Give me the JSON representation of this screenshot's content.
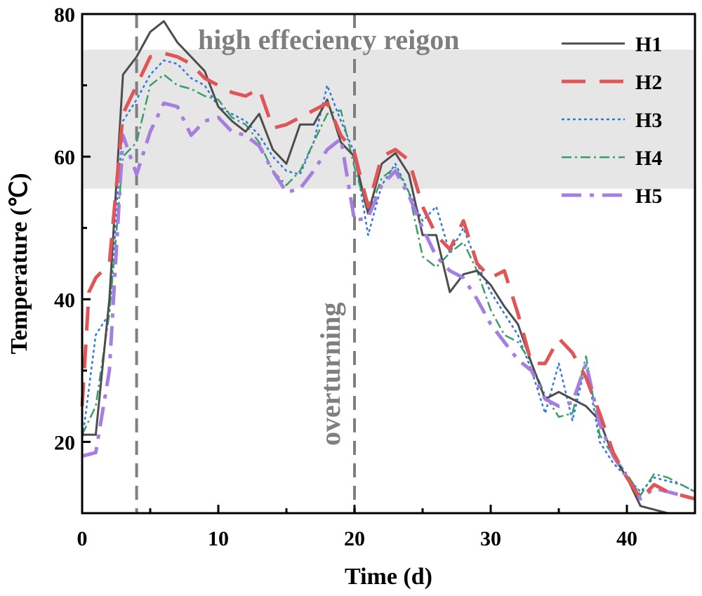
{
  "chart_data": {
    "type": "line",
    "xlabel": "Time (d)",
    "ylabel": "Temperature (℃)",
    "xlim": [
      0,
      45
    ],
    "ylim": [
      10,
      80
    ],
    "xticks": [
      0,
      10,
      20,
      30,
      40
    ],
    "yticks": [
      20,
      40,
      60,
      80
    ],
    "grid": false,
    "legend": "top-right",
    "region": {
      "label": "high effeciency reigon",
      "ymin": 55.5,
      "ymax": 75,
      "color": "#e6e6e6"
    },
    "vlines": [
      {
        "x": 4,
        "label": ""
      },
      {
        "x": 20,
        "label": "overturning"
      }
    ],
    "series": [
      {
        "name": "H1",
        "color": "#4d4d4d",
        "dash": "solid",
        "width": 3,
        "x": [
          0,
          1,
          2,
          3,
          4,
          5,
          6,
          7,
          8,
          9,
          10,
          11,
          12,
          13,
          14,
          15,
          16,
          17,
          18,
          19,
          20,
          21,
          22,
          23,
          24,
          25,
          26,
          27,
          28,
          29,
          30,
          31,
          32,
          33,
          34,
          35,
          36,
          37,
          38,
          39,
          40,
          41,
          42,
          43,
          44,
          45
        ],
        "values": [
          21,
          21,
          40,
          71.5,
          74,
          77.5,
          79,
          76,
          74,
          72,
          67,
          65,
          63.5,
          66,
          61,
          59,
          64.5,
          64.5,
          68,
          62,
          60,
          52,
          59,
          60.5,
          57.5,
          49,
          49,
          41,
          43.5,
          44,
          42,
          39,
          36.5,
          31,
          26,
          27,
          26,
          25,
          23,
          18,
          15,
          11,
          10.5,
          10,
          10,
          10
        ]
      },
      {
        "name": "H2",
        "color": "#e05555",
        "dash": "long",
        "width": 5,
        "x": [
          0,
          0.5,
          1,
          2,
          3,
          4,
          5,
          6,
          7,
          8,
          9,
          10,
          11,
          12,
          13,
          14,
          15,
          16,
          17,
          18,
          19,
          20,
          21,
          22,
          23,
          24,
          25,
          26,
          27,
          28,
          29,
          30,
          31,
          32,
          33,
          34,
          35,
          36,
          37,
          38,
          39,
          40,
          41,
          42,
          43,
          44,
          45
        ],
        "values": [
          25,
          41,
          43,
          45,
          66,
          70,
          74,
          74.5,
          74,
          73,
          71,
          70,
          69,
          68.5,
          69.5,
          64,
          64.5,
          65.5,
          66.5,
          67.5,
          63,
          60.5,
          53,
          60,
          61,
          59.5,
          53,
          49,
          47,
          51,
          45,
          43,
          44,
          38,
          31,
          31,
          34.5,
          32.5,
          29,
          24,
          18.5,
          15,
          12,
          14,
          13,
          12.5,
          12
        ]
      },
      {
        "name": "H3",
        "color": "#3377dd",
        "dash": "dot",
        "width": 2.5,
        "x": [
          0,
          1,
          2,
          3,
          4,
          5,
          6,
          7,
          8,
          9,
          10,
          11,
          12,
          13,
          14,
          15,
          16,
          17,
          18,
          19,
          20,
          21,
          22,
          23,
          24,
          25,
          26,
          27,
          28,
          29,
          30,
          31,
          32,
          33,
          34,
          35,
          36,
          37,
          38,
          39,
          40,
          41,
          42,
          43,
          44,
          45
        ],
        "values": [
          20,
          35,
          38,
          65,
          68,
          71.5,
          73.5,
          73,
          71,
          70,
          67,
          66,
          65,
          63,
          60,
          58,
          57.5,
          62,
          70,
          65,
          60.5,
          49,
          56,
          59,
          55,
          51,
          53,
          46.5,
          50,
          45,
          41,
          38,
          35,
          30,
          24,
          31,
          23,
          31,
          20,
          17,
          15,
          13,
          15,
          14.5,
          14,
          13
        ]
      },
      {
        "name": "H4",
        "color": "#3a9e6a",
        "dash": "dashdot",
        "width": 2.5,
        "x": [
          0,
          1,
          2,
          3,
          4,
          5,
          6,
          7,
          8,
          9,
          10,
          11,
          12,
          13,
          14,
          15,
          16,
          17,
          18,
          19,
          20,
          21,
          22,
          23,
          24,
          25,
          26,
          27,
          28,
          29,
          30,
          31,
          32,
          33,
          34,
          35,
          36,
          37,
          38,
          39,
          40,
          41,
          42,
          43,
          44,
          45
        ],
        "values": [
          21,
          25,
          38,
          60,
          62,
          70,
          71.5,
          70,
          69.5,
          68.5,
          68,
          65.5,
          64.5,
          62,
          58,
          56,
          58,
          62,
          66,
          66.5,
          58.5,
          52,
          57,
          58.5,
          55,
          46,
          44.5,
          46.5,
          48,
          44,
          38.5,
          35,
          34,
          31,
          26.5,
          23.5,
          24,
          32,
          21,
          18,
          15.5,
          12.5,
          15.5,
          15,
          14,
          13
        ]
      },
      {
        "name": "H5",
        "color": "#a57ee0",
        "dash": "dashdotlong",
        "width": 5,
        "x": [
          0,
          1,
          2,
          3,
          4,
          5,
          6,
          7,
          8,
          9,
          10,
          11,
          12,
          13,
          14,
          15,
          16,
          17,
          18,
          19,
          20,
          21,
          22,
          23,
          24,
          25,
          26,
          27,
          28,
          29,
          30,
          31,
          32,
          33,
          34,
          35,
          36,
          37,
          38,
          39,
          40,
          41,
          42,
          43,
          44,
          45
        ],
        "values": [
          18,
          18.5,
          30,
          63,
          57.5,
          63.5,
          67.5,
          67,
          63,
          65,
          65.5,
          63.5,
          63,
          61.5,
          58,
          55,
          55.5,
          58,
          61,
          62.5,
          51,
          51.5,
          56,
          58,
          54.5,
          50,
          46,
          44,
          43,
          40,
          36.5,
          34,
          31.5,
          30,
          26,
          25,
          25.5,
          31,
          22.5,
          18,
          15,
          12,
          13.5,
          13,
          12.5,
          12
        ]
      }
    ]
  }
}
